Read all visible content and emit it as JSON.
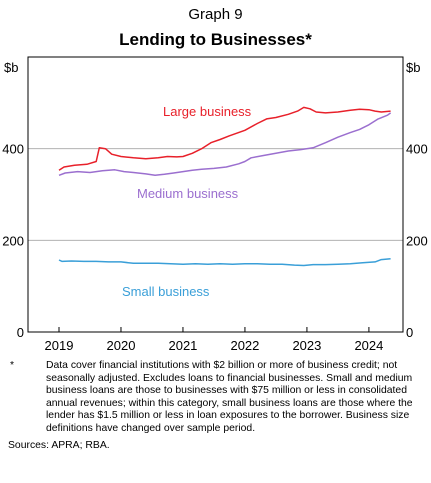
{
  "header": {
    "graph_number": "Graph 9",
    "title": "Lending to Businesses*"
  },
  "chart_data": {
    "type": "line",
    "title": "Lending to Businesses*",
    "ylabel_left": "$b",
    "ylabel_right": "$b",
    "y_ticks": [
      "0",
      "200",
      "400"
    ],
    "y_tick_values": [
      0,
      200,
      400
    ],
    "ylim": [
      0,
      600
    ],
    "x_ticks": [
      "2019",
      "2020",
      "2021",
      "2022",
      "2023",
      "2024"
    ],
    "x_tick_values": [
      2019,
      2020,
      2021,
      2022,
      2023,
      2024
    ],
    "xlim": [
      2018.5,
      2024.55
    ],
    "grid": "horizontal",
    "series": [
      {
        "name": "Large business",
        "color": "#e8202a",
        "x": [
          2019.0,
          2019.08,
          2019.25,
          2019.45,
          2019.6,
          2019.65,
          2019.75,
          2019.85,
          2020.0,
          2020.2,
          2020.4,
          2020.6,
          2020.75,
          2020.9,
          2021.0,
          2021.15,
          2021.3,
          2021.45,
          2021.6,
          2021.75,
          2022.0,
          2022.2,
          2022.35,
          2022.5,
          2022.7,
          2022.85,
          2022.95,
          2023.05,
          2023.15,
          2023.3,
          2023.5,
          2023.7,
          2023.85,
          2024.0,
          2024.1,
          2024.2,
          2024.35
        ],
        "values": [
          353,
          360,
          364,
          366,
          372,
          402,
          400,
          388,
          383,
          380,
          378,
          380,
          383,
          382,
          383,
          390,
          400,
          413,
          420,
          428,
          440,
          455,
          465,
          468,
          475,
          482,
          490,
          487,
          480,
          478,
          480,
          484,
          486,
          485,
          482,
          480,
          482
        ]
      },
      {
        "name": "Medium business",
        "color": "#9b6fcf",
        "x": [
          2019.0,
          2019.1,
          2019.3,
          2019.5,
          2019.7,
          2019.9,
          2020.05,
          2020.2,
          2020.4,
          2020.55,
          2020.7,
          2020.85,
          2021.0,
          2021.15,
          2021.3,
          2021.5,
          2021.7,
          2021.9,
          2022.0,
          2022.1,
          2022.3,
          2022.5,
          2022.7,
          2022.9,
          2023.1,
          2023.3,
          2023.5,
          2023.7,
          2023.85,
          2024.0,
          2024.15,
          2024.3,
          2024.35
        ],
        "values": [
          342,
          347,
          350,
          348,
          352,
          354,
          350,
          348,
          345,
          342,
          344,
          347,
          350,
          353,
          355,
          357,
          360,
          367,
          372,
          380,
          385,
          390,
          395,
          398,
          402,
          413,
          425,
          435,
          442,
          452,
          465,
          473,
          478
        ]
      },
      {
        "name": "Small business",
        "color": "#3a9fd8",
        "x": [
          2019.0,
          2019.05,
          2019.2,
          2019.4,
          2019.6,
          2019.8,
          2020.0,
          2020.2,
          2020.4,
          2020.6,
          2020.8,
          2021.0,
          2021.2,
          2021.4,
          2021.6,
          2021.8,
          2022.0,
          2022.2,
          2022.4,
          2022.6,
          2022.8,
          2022.95,
          2023.1,
          2023.3,
          2023.5,
          2023.7,
          2023.9,
          2024.1,
          2024.2,
          2024.35
        ],
        "values": [
          157,
          154,
          155,
          154,
          154,
          153,
          153,
          150,
          150,
          150,
          149,
          148,
          149,
          148,
          149,
          148,
          149,
          149,
          148,
          148,
          146,
          145,
          147,
          147,
          148,
          149,
          151,
          153,
          158,
          160
        ]
      }
    ],
    "annotations": [
      {
        "text": "Large business",
        "series": "Large business"
      },
      {
        "text": "Medium business",
        "series": "Medium business"
      },
      {
        "text": "Small business",
        "series": "Small business"
      }
    ]
  },
  "footnote": {
    "marker": "*",
    "text": "Data cover financial institutions with $2 billion or more of business credit; not seasonally adjusted. Excludes loans to financial businesses. Small and medium business loans are those to businesses with $75 million or less in consolidated annual revenues; within this category, small business loans are those where the lender has $1.5 million or less in loan exposures to the borrower. Business size definitions have changed over sample period.",
    "sources": "Sources: APRA; RBA."
  }
}
